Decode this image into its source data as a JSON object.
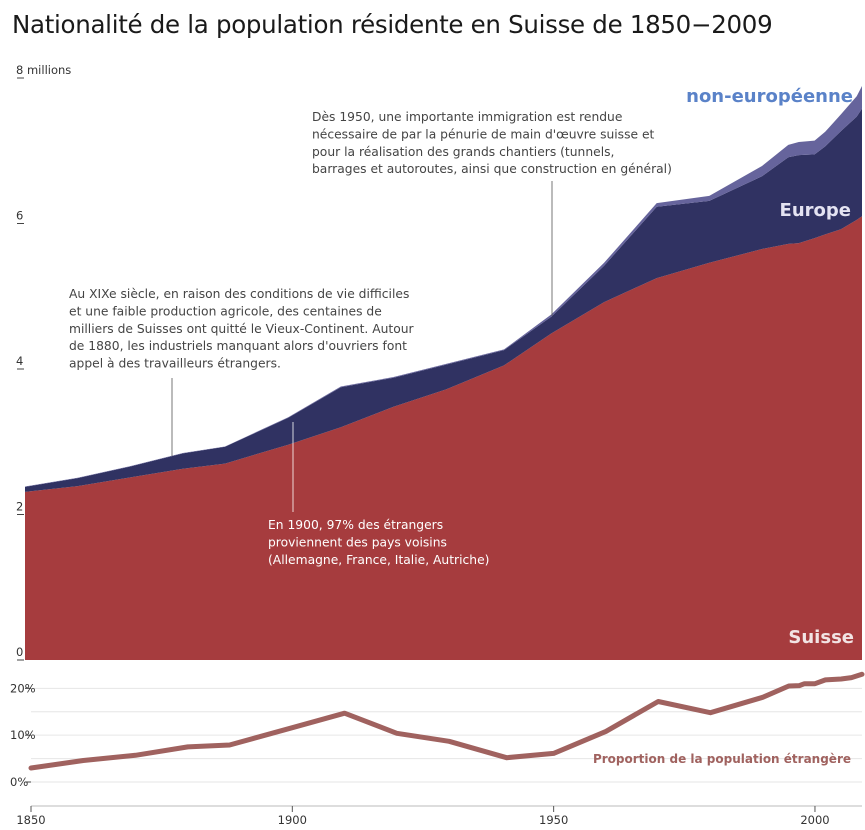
{
  "title": "Nationalité de la population résidente en Suisse de 1850−2009",
  "colors": {
    "suisse": "#a63c3e",
    "europe": "#303262",
    "non_europeenne": "#66649c",
    "label_non_europeenne": "#5a82c8",
    "label_europe": "#e4e3f2",
    "label_suisse": "#f2e4e4",
    "proportion_line": "#a0625f",
    "annotation_text": "#444444",
    "annotation_text_light": "#ffffff"
  },
  "chart_data": [
    {
      "type": "area",
      "stacked": true,
      "x_label": "",
      "y_label": "",
      "y_unit_label": "millions",
      "xlim": [
        1850,
        2009
      ],
      "ylim": [
        0,
        8
      ],
      "y_ticks": [
        "0",
        "2",
        "4",
        "6",
        "8 millions"
      ],
      "y_tick_values": [
        0,
        2,
        4,
        6,
        8
      ],
      "x": [
        1850,
        1860,
        1870,
        1880,
        1888,
        1900,
        1910,
        1920,
        1930,
        1941,
        1950,
        1960,
        1970,
        1980,
        1990,
        1995,
        1997,
        2000,
        2002,
        2005,
        2008,
        2009
      ],
      "series": [
        {
          "name": "Suisse",
          "key": "suisse",
          "values": [
            2.31,
            2.39,
            2.51,
            2.63,
            2.7,
            2.96,
            3.2,
            3.48,
            3.72,
            4.05,
            4.49,
            4.92,
            5.25,
            5.46,
            5.65,
            5.72,
            5.73,
            5.8,
            5.85,
            5.92,
            6.05,
            6.1
          ]
        },
        {
          "name": "Europe",
          "key": "europe",
          "values": [
            0.07,
            0.11,
            0.15,
            0.21,
            0.23,
            0.37,
            0.55,
            0.4,
            0.34,
            0.21,
            0.23,
            0.5,
            0.98,
            0.85,
            1.0,
            1.19,
            1.21,
            1.15,
            1.21,
            1.35,
            1.42,
            1.48
          ]
        },
        {
          "name": "non-européenne",
          "key": "non_europeenne",
          "values": [
            0.005,
            0.005,
            0.005,
            0.005,
            0.005,
            0.007,
            0.01,
            0.01,
            0.01,
            0.01,
            0.03,
            0.04,
            0.05,
            0.07,
            0.14,
            0.17,
            0.18,
            0.19,
            0.2,
            0.23,
            0.28,
            0.31
          ]
        }
      ],
      "series_labels": {
        "non_europeenne": "non-européenne",
        "europe": "Europe",
        "suisse": "Suisse"
      },
      "annotations": [
        {
          "id": "xixe",
          "anchor_x": 1877,
          "anchor_y": 2.83,
          "lines": [
            "Au XIXe siècle, en raison des conditions de vie difficiles",
            "et une faible production agricole, des centaines de",
            "milliers de Suisses ont quitté le Vieux-Continent. Autour",
            "de 1880, les industriels manquant alors d'ouvriers font",
            "appel à des travailleurs étrangers."
          ]
        },
        {
          "id": "y1950",
          "anchor_x": 1950,
          "anchor_y": 4.72,
          "lines": [
            "Dès 1950, une importante immigration est rendue",
            "nécessaire de par la pénurie de main d'œuvre suisse et",
            "pour la réalisation des grands chantiers (tunnels,",
            "barrages et autoroutes, ainsi que construction en général)"
          ]
        },
        {
          "id": "y1900",
          "anchor_x": 1900,
          "anchor_y": 3.3,
          "lines": [
            "En 1900, 97% des étrangers",
            "proviennent des pays voisins",
            "(Allemagne, France, Italie, Autriche)"
          ]
        }
      ]
    },
    {
      "type": "line",
      "x_label": "",
      "y_label": "",
      "xlim": [
        1850,
        2009
      ],
      "ylim": [
        0,
        22
      ],
      "y_ticks": [
        "0%",
        "10%",
        "20%"
      ],
      "y_tick_values": [
        0,
        10,
        20
      ],
      "x_ticks": [
        "1850",
        "1900",
        "1950",
        "2000"
      ],
      "x_tick_values": [
        1850,
        1900,
        1950,
        2000
      ],
      "series": [
        {
          "name": "Proportion de la population étrangère",
          "x": [
            1850,
            1860,
            1870,
            1880,
            1888,
            1900,
            1910,
            1920,
            1930,
            1941,
            1950,
            1960,
            1970,
            1980,
            1990,
            1995,
            1997,
            1998,
            2000,
            2002,
            2005,
            2007,
            2009
          ],
          "values": [
            3.0,
            4.6,
            5.7,
            7.5,
            7.9,
            11.6,
            14.7,
            10.4,
            8.7,
            5.2,
            6.1,
            10.8,
            17.2,
            14.8,
            18.1,
            20.5,
            20.6,
            21.0,
            21.0,
            21.8,
            22.0,
            22.3,
            23.0
          ]
        }
      ]
    }
  ]
}
